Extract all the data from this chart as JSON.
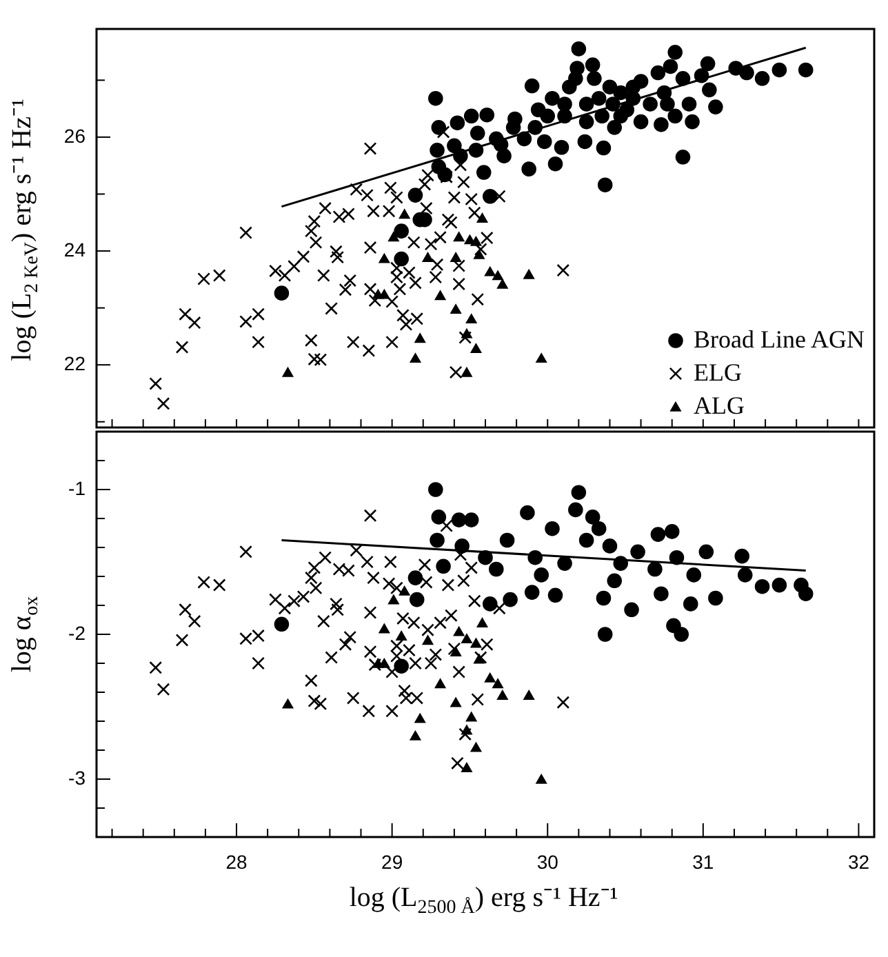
{
  "chart_data": [
    {
      "type": "scatter",
      "ylabel": "log (L$_{2 KeV}$) erg s⁻¹ Hz⁻¹",
      "legend": "bottom right",
      "tick_labels": "y",
      "grid": false,
      "xlim": [
        27.1,
        32.1
      ],
      "xticks": [
        {
          "value": 27.2,
          "label": null
        },
        {
          "value": 27.4,
          "label": null
        },
        {
          "value": 27.6,
          "label": null
        },
        {
          "value": 27.8,
          "label": null
        },
        {
          "value": 28,
          "label": null
        },
        {
          "value": 28.2,
          "label": null
        },
        {
          "value": 28.4,
          "label": null
        },
        {
          "value": 28.6,
          "label": null
        },
        {
          "value": 28.8,
          "label": null
        },
        {
          "value": 29,
          "label": null
        },
        {
          "value": 29.2,
          "label": null
        },
        {
          "value": 29.4,
          "label": null
        },
        {
          "value": 29.6,
          "label": null
        },
        {
          "value": 29.8,
          "label": null
        },
        {
          "value": 30,
          "label": null
        },
        {
          "value": 30.2,
          "label": null
        },
        {
          "value": 30.4,
          "label": null
        },
        {
          "value": 30.6,
          "label": null
        },
        {
          "value": 30.8,
          "label": null
        },
        {
          "value": 31,
          "label": null
        },
        {
          "value": 31.2,
          "label": null
        },
        {
          "value": 31.4,
          "label": null
        },
        {
          "value": 31.6,
          "label": null
        },
        {
          "value": 31.8,
          "label": null
        },
        {
          "value": 32,
          "label": null
        }
      ],
      "ylim": [
        20.9,
        27.9
      ],
      "yticks": [
        {
          "value": 21,
          "label": null
        },
        22,
        {
          "value": 23,
          "label": null
        },
        24,
        {
          "value": 25,
          "label": null
        },
        26,
        {
          "value": 27,
          "label": null
        }
      ],
      "series": [
        {
          "name": "Broad Line AGN",
          "color": "#000000",
          "marker": "circle",
          "x": [
            28.29,
            29.06,
            29.06,
            29.15,
            29.18,
            29.21,
            29.28,
            29.3,
            29.29,
            29.3,
            29.34,
            29.42,
            29.4,
            29.51,
            29.61,
            29.63,
            29.59,
            29.54,
            29.55,
            29.67,
            29.72,
            29.78,
            29.79,
            29.9,
            29.88,
            29.85,
            29.94,
            29.98,
            30.03,
            30.05,
            30.09,
            30.11,
            30.14,
            30.18,
            30.2,
            30.19,
            30.24,
            30.25,
            30.29,
            30.3,
            30.36,
            30.37,
            30.35,
            30.4,
            30.42,
            30.43,
            30.47,
            30.51,
            30.55,
            30.6,
            30.6,
            30.66,
            30.71,
            30.73,
            30.75,
            30.79,
            30.82,
            30.82,
            30.87,
            30.87,
            30.91,
            30.93,
            30.99,
            31.03,
            31.04,
            31.08,
            31.21,
            31.28,
            31.38,
            31.49,
            31.66,
            30.11,
            30.33,
            30.55,
            29.92,
            30.77,
            30.47,
            30.25,
            30.0,
            29.7,
            29.44
          ],
          "values": [
            23.26,
            23.86,
            24.35,
            24.98,
            24.55,
            24.55,
            26.68,
            26.17,
            25.77,
            25.48,
            25.34,
            26.25,
            25.85,
            26.37,
            26.39,
            24.96,
            25.38,
            25.77,
            26.07,
            25.97,
            25.67,
            26.17,
            26.32,
            26.9,
            25.44,
            25.97,
            26.48,
            25.92,
            26.68,
            25.53,
            25.82,
            26.37,
            26.88,
            27.03,
            27.55,
            27.21,
            25.92,
            26.58,
            27.27,
            27.03,
            25.81,
            25.16,
            26.37,
            26.88,
            26.58,
            26.17,
            26.78,
            26.48,
            26.68,
            26.27,
            26.98,
            26.58,
            27.13,
            26.22,
            26.78,
            27.24,
            27.49,
            26.37,
            25.65,
            27.03,
            26.58,
            26.27,
            27.08,
            27.29,
            26.83,
            26.53,
            27.21,
            27.13,
            27.03,
            27.18,
            27.18,
            26.58,
            26.68,
            26.88,
            26.17,
            26.58,
            26.37,
            26.27,
            26.37,
            25.87,
            25.67
          ]
        },
        {
          "name": "ELG",
          "color": "#000000",
          "marker": "cross",
          "x": [
            27.48,
            27.53,
            27.65,
            27.67,
            27.73,
            27.79,
            27.89,
            28.06,
            28.06,
            28.14,
            28.14,
            28.25,
            28.31,
            28.37,
            28.43,
            28.48,
            28.5,
            28.54,
            28.48,
            28.5,
            28.51,
            28.57,
            28.56,
            28.61,
            28.66,
            28.64,
            28.65,
            28.7,
            28.73,
            28.72,
            28.75,
            28.77,
            28.84,
            28.86,
            28.86,
            28.89,
            28.85,
            28.86,
            28.88,
            28.99,
            28.98,
            29.0,
            29.0,
            29.03,
            29.03,
            29.03,
            29.05,
            29.07,
            29.09,
            29.11,
            29.14,
            29.15,
            29.16,
            29.21,
            29.22,
            29.23,
            29.25,
            29.28,
            29.29,
            29.31,
            29.33,
            29.35,
            29.36,
            29.38,
            29.4,
            29.43,
            29.43,
            29.44,
            29.46,
            29.47,
            29.41,
            29.51,
            29.53,
            29.55,
            29.57,
            29.61,
            29.69,
            30.1
          ],
          "values": [
            21.67,
            21.32,
            22.31,
            22.89,
            22.74,
            23.51,
            23.57,
            24.32,
            22.76,
            22.89,
            22.4,
            23.65,
            23.57,
            23.73,
            23.9,
            22.43,
            22.1,
            22.09,
            24.35,
            24.52,
            24.15,
            24.75,
            23.57,
            22.99,
            24.6,
            23.99,
            23.89,
            23.32,
            23.48,
            24.65,
            22.4,
            25.08,
            24.98,
            24.06,
            23.33,
            23.13,
            22.25,
            25.8,
            24.7,
            25.11,
            24.7,
            23.11,
            22.4,
            24.94,
            23.7,
            23.54,
            23.33,
            22.87,
            22.71,
            23.62,
            24.15,
            23.44,
            22.81,
            25.17,
            24.75,
            25.33,
            24.12,
            23.54,
            23.76,
            24.24,
            26.09,
            25.3,
            24.55,
            24.5,
            24.94,
            23.74,
            23.42,
            25.51,
            25.21,
            22.48,
            21.87,
            24.91,
            24.67,
            23.15,
            24.03,
            24.23,
            24.96,
            23.66
          ]
        },
        {
          "name": "ALG",
          "color": "#000000",
          "marker": "triangle",
          "x": [
            28.33,
            28.95,
            28.91,
            29.01,
            28.95,
            29.08,
            29.15,
            29.18,
            29.23,
            29.31,
            29.41,
            29.41,
            29.43,
            29.48,
            29.48,
            29.51,
            29.54,
            29.5,
            29.54,
            29.58,
            29.56,
            29.63,
            29.68,
            29.71,
            29.88,
            29.96
          ],
          "values": [
            21.87,
            23.24,
            23.24,
            24.25,
            23.87,
            24.65,
            22.12,
            22.47,
            23.89,
            23.22,
            22.98,
            23.89,
            24.25,
            21.87,
            22.55,
            22.81,
            22.29,
            24.2,
            24.17,
            24.58,
            23.94,
            23.64,
            23.57,
            23.42,
            23.59,
            22.12
          ]
        },
        {
          "type": "line",
          "color": "#000000",
          "marker": "none",
          "x": [
            28.29,
            31.66
          ],
          "values": [
            24.78,
            27.57
          ]
        }
      ]
    },
    {
      "type": "scatter",
      "xlabel": "log (L$_{2500 Å}$) erg s⁻¹ Hz⁻¹",
      "ylabel": "log α$_{ox}$",
      "grid": false,
      "xlim": [
        27.1,
        32.1
      ],
      "xticks": [
        {
          "value": 27.2,
          "label": null
        },
        {
          "value": 27.4,
          "label": null
        },
        {
          "value": 27.6,
          "label": null
        },
        {
          "value": 27.8,
          "label": null
        },
        28,
        {
          "value": 28.2,
          "label": null
        },
        {
          "value": 28.4,
          "label": null
        },
        {
          "value": 28.6,
          "label": null
        },
        {
          "value": 28.8,
          "label": null
        },
        29,
        {
          "value": 29.2,
          "label": null
        },
        {
          "value": 29.4,
          "label": null
        },
        {
          "value": 29.6,
          "label": null
        },
        {
          "value": 29.8,
          "label": null
        },
        30,
        {
          "value": 30.2,
          "label": null
        },
        {
          "value": 30.4,
          "label": null
        },
        {
          "value": 30.6,
          "label": null
        },
        {
          "value": 30.8,
          "label": null
        },
        31,
        {
          "value": 31.2,
          "label": null
        },
        {
          "value": 31.4,
          "label": null
        },
        {
          "value": 31.6,
          "label": null
        },
        {
          "value": 31.8,
          "label": null
        },
        32
      ],
      "ylim": [
        -3.4,
        -0.6
      ],
      "yticks": [
        {
          "value": -3.2,
          "label": null
        },
        -3,
        {
          "value": -2.8,
          "label": null
        },
        {
          "value": -2.6,
          "label": null
        },
        {
          "value": -2.4,
          "label": null
        },
        {
          "value": -2.2,
          "label": null
        },
        -2,
        {
          "value": -1.8,
          "label": null
        },
        {
          "value": -1.6,
          "label": null
        },
        {
          "value": -1.4,
          "label": null
        },
        {
          "value": -1.2,
          "label": null
        },
        -1,
        {
          "value": -0.8,
          "label": null
        }
      ],
      "series": [
        {
          "color": "#000000",
          "marker": "circle",
          "x": [
            28.29,
            29.06,
            29.15,
            29.16,
            29.28,
            29.3,
            29.29,
            29.33,
            29.43,
            29.51,
            29.63,
            29.76,
            29.87,
            29.9,
            30.05,
            30.2,
            30.18,
            30.29,
            30.36,
            30.37,
            30.43,
            30.54,
            30.71,
            30.73,
            30.8,
            30.81,
            30.86,
            30.92,
            31.02,
            31.08,
            31.25,
            31.27,
            31.38,
            31.49,
            31.63,
            31.66,
            29.45,
            29.6,
            29.74,
            29.92,
            30.03,
            30.11,
            30.25,
            30.4,
            30.47,
            30.58,
            30.69,
            30.83,
            30.94,
            30.33,
            29.96,
            29.67
          ],
          "values": [
            -1.93,
            -2.22,
            -1.61,
            -1.76,
            -1.0,
            -1.19,
            -1.35,
            -1.53,
            -1.21,
            -1.21,
            -1.79,
            -1.76,
            -1.16,
            -1.71,
            -1.73,
            -1.02,
            -1.14,
            -1.19,
            -1.75,
            -2.0,
            -1.63,
            -1.83,
            -1.31,
            -1.72,
            -1.29,
            -1.94,
            -2.0,
            -1.79,
            -1.43,
            -1.75,
            -1.46,
            -1.59,
            -1.67,
            -1.66,
            -1.66,
            -1.72,
            -1.39,
            -1.47,
            -1.35,
            -1.47,
            -1.27,
            -1.51,
            -1.35,
            -1.39,
            -1.51,
            -1.43,
            -1.55,
            -1.47,
            -1.59,
            -1.27,
            -1.59,
            -1.55
          ]
        },
        {
          "color": "#000000",
          "marker": "cross",
          "x": [
            27.48,
            27.53,
            27.65,
            27.67,
            27.73,
            27.79,
            27.89,
            28.06,
            28.06,
            28.14,
            28.14,
            28.25,
            28.31,
            28.37,
            28.43,
            28.48,
            28.5,
            28.54,
            28.48,
            28.5,
            28.51,
            28.57,
            28.56,
            28.61,
            28.66,
            28.64,
            28.65,
            28.7,
            28.73,
            28.72,
            28.75,
            28.77,
            28.84,
            28.86,
            28.86,
            28.89,
            28.85,
            28.86,
            28.88,
            28.99,
            28.98,
            29.0,
            29.0,
            29.03,
            29.03,
            29.03,
            29.07,
            29.08,
            29.09,
            29.11,
            29.14,
            29.15,
            29.16,
            29.21,
            29.22,
            29.23,
            29.25,
            29.28,
            29.31,
            29.35,
            29.36,
            29.38,
            29.4,
            29.43,
            29.42,
            29.44,
            29.46,
            29.47,
            29.51,
            29.53,
            29.55,
            29.57,
            29.61,
            29.69,
            30.1
          ],
          "values": [
            -2.23,
            -2.38,
            -2.04,
            -1.83,
            -1.91,
            -1.64,
            -1.66,
            -1.43,
            -2.03,
            -2.01,
            -2.2,
            -1.76,
            -1.82,
            -1.77,
            -1.74,
            -2.32,
            -2.46,
            -2.48,
            -1.61,
            -1.54,
            -1.68,
            -1.47,
            -1.91,
            -2.16,
            -1.55,
            -1.79,
            -1.83,
            -2.07,
            -2.02,
            -1.56,
            -2.44,
            -1.42,
            -1.5,
            -1.85,
            -2.12,
            -2.21,
            -2.53,
            -1.18,
            -1.61,
            -1.5,
            -1.65,
            -2.26,
            -2.53,
            -1.68,
            -2.08,
            -2.15,
            -1.89,
            -2.39,
            -2.44,
            -2.11,
            -1.92,
            -2.2,
            -2.44,
            -1.52,
            -1.64,
            -1.97,
            -2.2,
            -2.14,
            -1.92,
            -1.25,
            -1.66,
            -1.87,
            -2.1,
            -2.26,
            -2.89,
            -1.45,
            -1.63,
            -2.69,
            -1.54,
            -1.77,
            -2.45,
            -2.16,
            -2.07,
            -1.82,
            -2.47
          ]
        },
        {
          "color": "#000000",
          "marker": "triangle",
          "x": [
            28.33,
            28.95,
            28.91,
            28.95,
            29.01,
            29.06,
            29.08,
            29.15,
            29.18,
            29.23,
            29.31,
            29.41,
            29.41,
            29.43,
            29.48,
            29.48,
            29.51,
            29.54,
            29.48,
            29.54,
            29.58,
            29.56,
            29.63,
            29.68,
            29.71,
            29.88,
            29.96
          ],
          "values": [
            -2.48,
            -2.2,
            -2.2,
            -1.96,
            -1.76,
            -2.01,
            -1.7,
            -2.7,
            -2.58,
            -2.04,
            -2.34,
            -2.47,
            -2.12,
            -1.98,
            -2.92,
            -2.66,
            -2.57,
            -2.78,
            -2.03,
            -2.06,
            -1.92,
            -2.17,
            -2.3,
            -2.34,
            -2.42,
            -2.42,
            -3.0
          ]
        },
        {
          "type": "line",
          "color": "#000000",
          "marker": "none",
          "x": [
            28.29,
            31.66
          ],
          "values": [
            -1.35,
            -1.56
          ]
        }
      ]
    }
  ]
}
